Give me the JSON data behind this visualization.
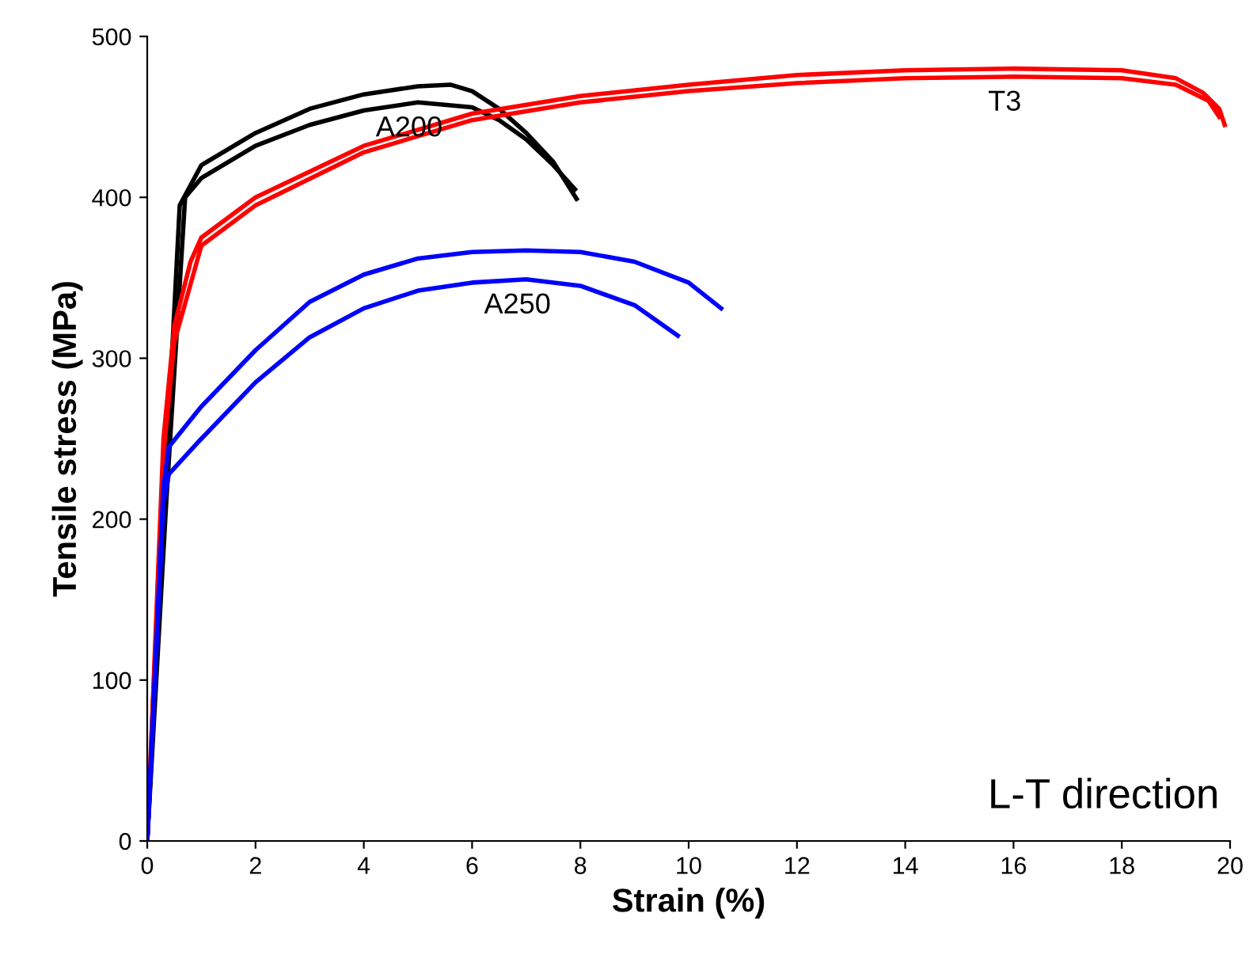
{
  "chart_data": {
    "type": "line",
    "xlabel": "Strain (%)",
    "ylabel": "Tensile stress (MPa)",
    "xlim": [
      0,
      20
    ],
    "ylim": [
      0,
      500
    ],
    "xticks": [
      0,
      2,
      4,
      6,
      8,
      10,
      12,
      14,
      16,
      18,
      20
    ],
    "yticks": [
      0,
      100,
      200,
      300,
      400,
      500
    ],
    "grid": false,
    "legend": false,
    "marker": "none",
    "line_style": "solid",
    "series": [
      {
        "color": "#000000",
        "x": [
          0,
          0.3,
          0.6,
          1,
          2,
          3,
          4,
          5,
          5.6,
          6,
          6.5,
          7,
          7.5,
          7.93
        ],
        "values": [
          0,
          200,
          395,
          420,
          440,
          455,
          464,
          469,
          470,
          466,
          455,
          440,
          422,
          399
        ]
      },
      {
        "name": "A200",
        "color": "#000000",
        "x": [
          0,
          0.35,
          0.7,
          1,
          2,
          3,
          4,
          5,
          6,
          6.5,
          7,
          7.5,
          7.9
        ],
        "values": [
          0,
          210,
          400,
          412,
          432,
          445,
          454,
          459,
          456,
          448,
          436,
          420,
          405
        ]
      },
      {
        "color": "#ff0000",
        "x": [
          0,
          0.3,
          0.5,
          0.8,
          1,
          2,
          4,
          6,
          8,
          10,
          12,
          14,
          16,
          18,
          19,
          19.5,
          19.8,
          19.9
        ],
        "values": [
          0,
          250,
          320,
          360,
          375,
          400,
          432,
          452,
          463,
          470,
          476,
          479,
          480,
          479,
          474,
          465,
          455,
          445
        ]
      },
      {
        "name": "T3",
        "color": "#ff0000",
        "x": [
          0,
          0.3,
          0.5,
          1,
          2,
          4,
          6,
          8,
          10,
          12,
          14,
          16,
          18,
          19,
          19.6,
          19.8
        ],
        "values": [
          0,
          240,
          310,
          370,
          395,
          428,
          448,
          459,
          466,
          471,
          474,
          475,
          474,
          470,
          460,
          450
        ]
      },
      {
        "color": "#0000ff",
        "x": [
          0,
          0.3,
          0.4,
          1,
          2,
          3,
          4,
          5,
          6,
          7,
          8,
          9,
          10,
          10.6
        ],
        "values": [
          0,
          220,
          245,
          270,
          305,
          335,
          352,
          362,
          366,
          367,
          366,
          360,
          347,
          331
        ]
      },
      {
        "name": "A250",
        "color": "#0000ff",
        "x": [
          0,
          0.3,
          0.4,
          1,
          2,
          3,
          4,
          5,
          6,
          7,
          8,
          9,
          9.8
        ],
        "values": [
          0,
          210,
          228,
          250,
          285,
          313,
          331,
          342,
          347,
          349,
          345,
          333,
          314
        ]
      }
    ],
    "annotations": [
      "L-T direction"
    ]
  }
}
